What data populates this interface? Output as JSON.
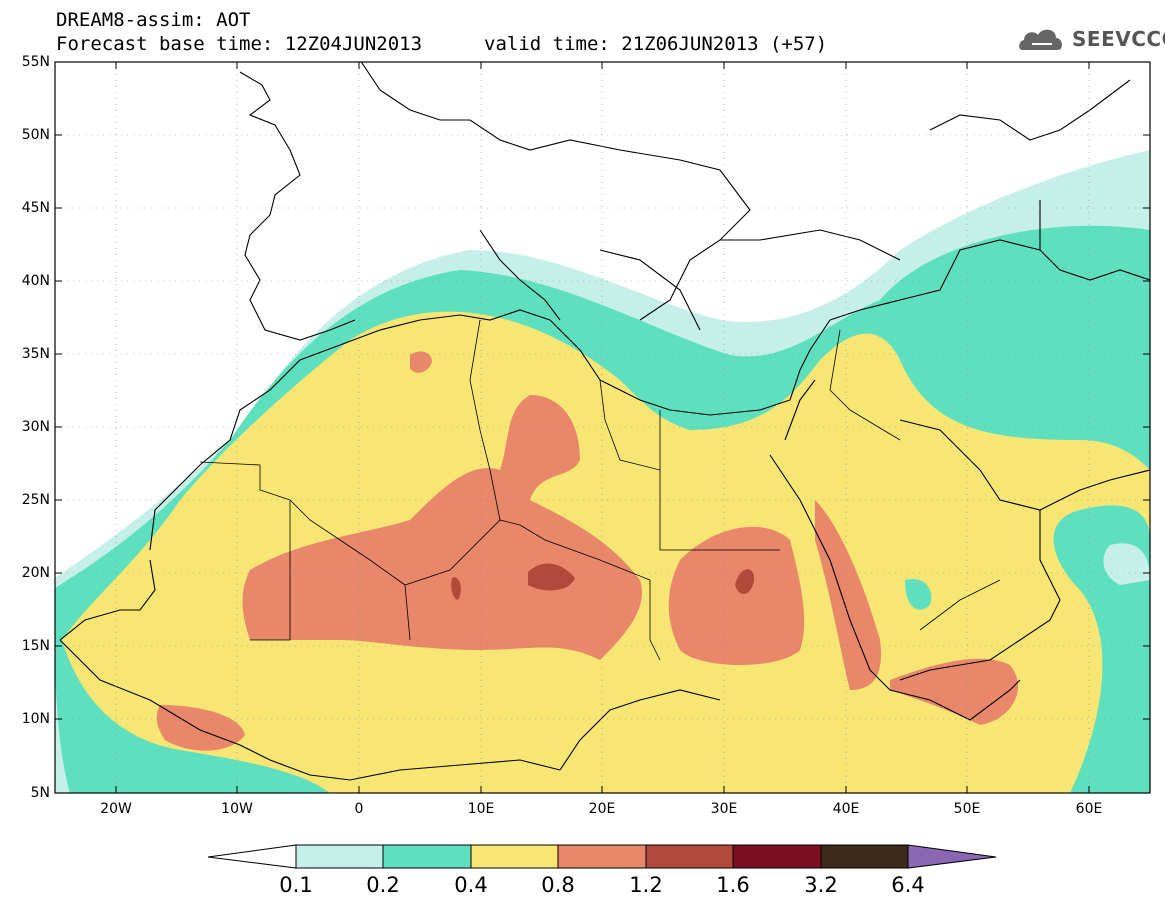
{
  "header": {
    "title_line1": "DREAM8-assim: AOT",
    "title_line2": "Forecast base time: 12Z04JUN2013",
    "valid_time": "valid time: 21Z06JUN2013 (+57)"
  },
  "logo": {
    "text": "SEEVCCC",
    "icon": "cloud-icon"
  },
  "map": {
    "lat_labels": [
      "55N",
      "50N",
      "45N",
      "40N",
      "35N",
      "30N",
      "25N",
      "20N",
      "15N",
      "10N",
      "5N"
    ],
    "lon_labels": [
      "20W",
      "10W",
      "0",
      "10E",
      "20E",
      "30E",
      "40E",
      "50E",
      "60E"
    ]
  },
  "colorbar": {
    "labels": [
      "0.1",
      "0.2",
      "0.4",
      "0.8",
      "1.2",
      "1.6",
      "3.2",
      "6.4"
    ],
    "colors": [
      "#c7efe9",
      "#5ee0bf",
      "#f7e574",
      "#e8876a",
      "#b24a3c",
      "#7d0f22",
      "#3e2a1a",
      "#8b67b3"
    ]
  }
}
